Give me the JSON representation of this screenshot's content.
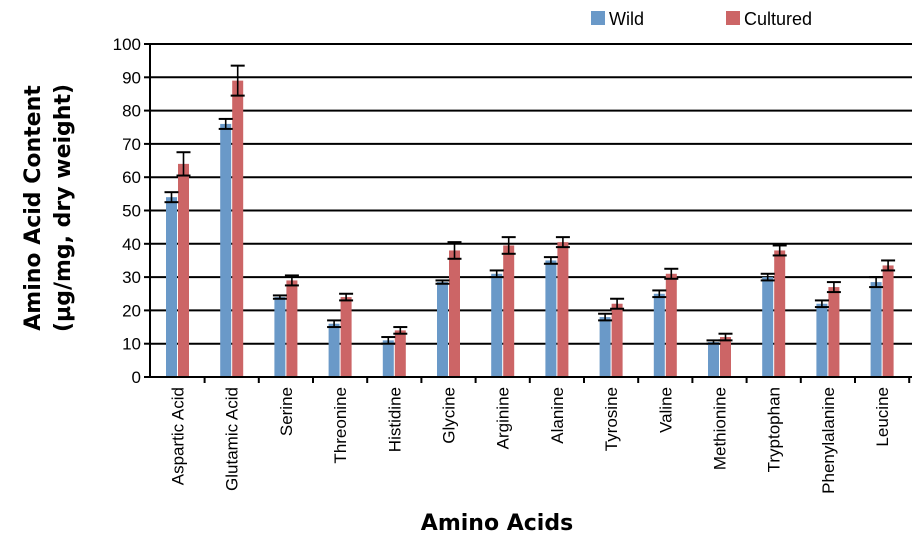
{
  "chart_data": {
    "type": "bar",
    "title": "",
    "xlabel": "Amino Acids",
    "ylabel_line1": "Amino Acid Content",
    "ylabel_line2": "(µg/mg, dry weight)",
    "ylim": [
      0,
      100
    ],
    "yticks": [
      0,
      10,
      20,
      30,
      40,
      50,
      60,
      70,
      80,
      90,
      100
    ],
    "grid": true,
    "legend_position": "top-right",
    "categories": [
      "Aspartic Acid",
      "Glutamic Acid",
      "Serine",
      "Threonine",
      "Histidine",
      "Glycine",
      "Arginine",
      "Alanine",
      "Tyrosine",
      "Valine",
      "Methionine",
      "Tryptophan",
      "Phenylalanine",
      "Leucine"
    ],
    "series": [
      {
        "name": "Wild",
        "color": "#6a99c8",
        "values": [
          54,
          76,
          24,
          16,
          11,
          28.5,
          31,
          35,
          18,
          25,
          10.5,
          30,
          22,
          28.5
        ],
        "errors": [
          1.5,
          1.5,
          0.5,
          1,
          1,
          0.5,
          1,
          1,
          1,
          1,
          0.5,
          1,
          1,
          1.5
        ]
      },
      {
        "name": "Cultured",
        "color": "#cc6566",
        "values": [
          64,
          89,
          29,
          24,
          14,
          38,
          39.5,
          40.5,
          22,
          31,
          12,
          38,
          27,
          33.5
        ],
        "errors": [
          3.5,
          4.5,
          1.5,
          1,
          1,
          2.5,
          2.5,
          1.5,
          1.5,
          1.5,
          1,
          1.5,
          1.5,
          1.5
        ]
      }
    ]
  }
}
